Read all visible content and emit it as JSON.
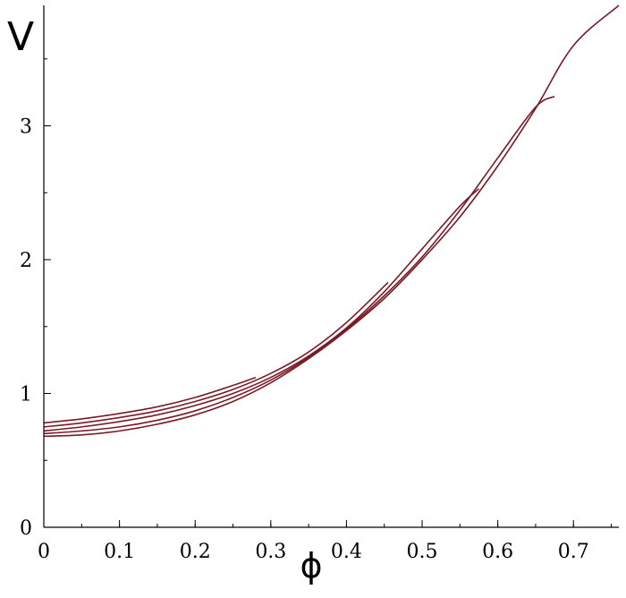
{
  "chart_data": {
    "type": "line",
    "xlabel": "ϕ",
    "ylabel": "V",
    "xlim": [
      0,
      0.76
    ],
    "ylim": [
      0,
      3.9
    ],
    "x_ticks": [
      0,
      0.1,
      0.2,
      0.3,
      0.4,
      0.5,
      0.6,
      0.7
    ],
    "x_tick_labels": [
      "0",
      "0.1",
      "0.2",
      "0.3",
      "0.4",
      "0.5",
      "0.6",
      "0.7"
    ],
    "x_minor_step": 0.05,
    "y_ticks": [
      0,
      1,
      2,
      3
    ],
    "y_tick_labels": [
      "0",
      "1",
      "2",
      "3"
    ],
    "y_minor_step": 0.5,
    "grid": false,
    "legend": "none",
    "line_color": "#7a1a26",
    "series": [
      {
        "x": [
          0,
          0.05,
          0.1,
          0.15,
          0.2,
          0.25,
          0.3,
          0.35,
          0.4,
          0.45,
          0.5,
          0.55,
          0.6,
          0.65,
          0.7,
          0.76
        ],
        "y": [
          0.68,
          0.69,
          0.72,
          0.77,
          0.84,
          0.94,
          1.08,
          1.26,
          1.47,
          1.71,
          2.0,
          2.32,
          2.7,
          3.13,
          3.6,
          3.9
        ]
      },
      {
        "x": [
          0,
          0.05,
          0.1,
          0.15,
          0.2,
          0.25,
          0.3,
          0.35,
          0.4,
          0.45,
          0.5,
          0.55,
          0.6,
          0.65,
          0.675
        ],
        "y": [
          0.7,
          0.72,
          0.75,
          0.8,
          0.87,
          0.97,
          1.1,
          1.27,
          1.48,
          1.73,
          2.02,
          2.37,
          2.76,
          3.14,
          3.22
        ]
      },
      {
        "x": [
          0,
          0.05,
          0.1,
          0.15,
          0.2,
          0.25,
          0.3,
          0.35,
          0.4,
          0.45,
          0.5,
          0.55,
          0.575
        ],
        "y": [
          0.72,
          0.75,
          0.79,
          0.84,
          0.91,
          1.0,
          1.12,
          1.28,
          1.49,
          1.76,
          2.08,
          2.4,
          2.53
        ]
      },
      {
        "x": [
          0,
          0.05,
          0.1,
          0.15,
          0.2,
          0.25,
          0.3,
          0.35,
          0.4,
          0.455
        ],
        "y": [
          0.75,
          0.78,
          0.82,
          0.87,
          0.94,
          1.03,
          1.15,
          1.31,
          1.53,
          1.83
        ]
      },
      {
        "x": [
          0,
          0.05,
          0.1,
          0.15,
          0.2,
          0.25,
          0.28
        ],
        "y": [
          0.78,
          0.81,
          0.85,
          0.9,
          0.97,
          1.06,
          1.12
        ]
      }
    ]
  }
}
